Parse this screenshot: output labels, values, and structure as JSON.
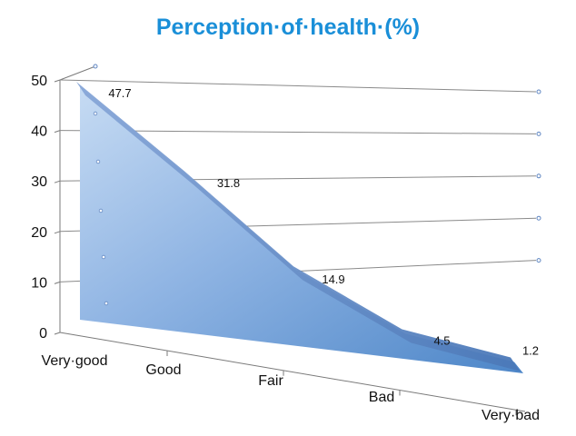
{
  "chart_data": {
    "type": "area",
    "title": "Perception·of·health·(%)",
    "categories": [
      "Very·good",
      "Good",
      "Fair",
      "Bad",
      "Very·bad"
    ],
    "values": [
      47.7,
      31.8,
      14.9,
      4.5,
      1.2
    ],
    "data_labels": [
      "47.7",
      "31.8",
      "14.9",
      "4.5",
      "1.2"
    ],
    "y_ticks": [
      "0",
      "10",
      "20",
      "30",
      "40",
      "50"
    ],
    "ylim": [
      0,
      50
    ],
    "xlabel": "",
    "ylabel": "",
    "grid": true,
    "legend": "none",
    "colors": {
      "title": "#1a8fd8",
      "area_light": "#c4d9f1",
      "area_dark": "#4a82c4",
      "top_edge": "#6f95cf",
      "grid": "#8a8a8a"
    }
  }
}
